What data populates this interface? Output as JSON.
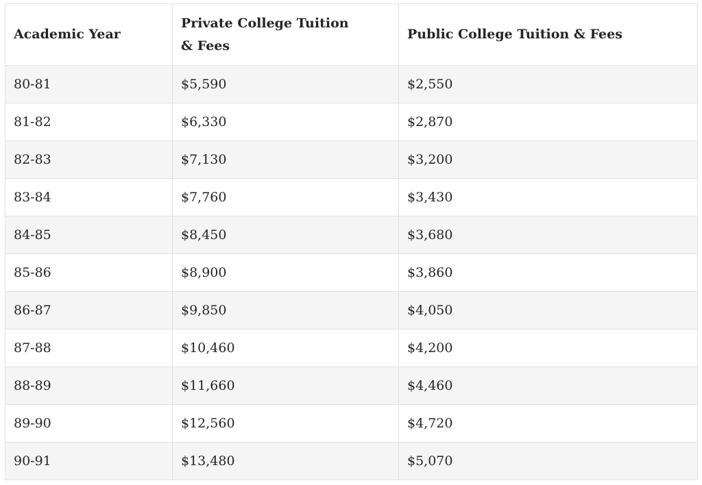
{
  "colors": {
    "border": "#e0e0e0",
    "stripe": "#f5f5f5",
    "text": "#242424",
    "background": "#ffffff"
  },
  "chart_data": {
    "type": "table",
    "columns": [
      "Academic Year",
      "Private College Tuition & Fees",
      "Public College Tuition & Fees"
    ],
    "rows": [
      [
        "80-81",
        "$5,590",
        "$2,550"
      ],
      [
        "81-82",
        "$6,330",
        "$2,870"
      ],
      [
        "82-83",
        "$7,130",
        "$3,200"
      ],
      [
        "83-84",
        "$7,760",
        "$3,430"
      ],
      [
        "84-85",
        "$8,450",
        "$3,680"
      ],
      [
        "85-86",
        "$8,900",
        "$3,860"
      ],
      [
        "86-87",
        "$9,850",
        "$4,050"
      ],
      [
        "87-88",
        "$10,460",
        "$4,200"
      ],
      [
        "88-89",
        "$11,660",
        "$4,460"
      ],
      [
        "89-90",
        "$12,560",
        "$4,720"
      ],
      [
        "90-91",
        "$13,480",
        "$5,070"
      ]
    ]
  }
}
